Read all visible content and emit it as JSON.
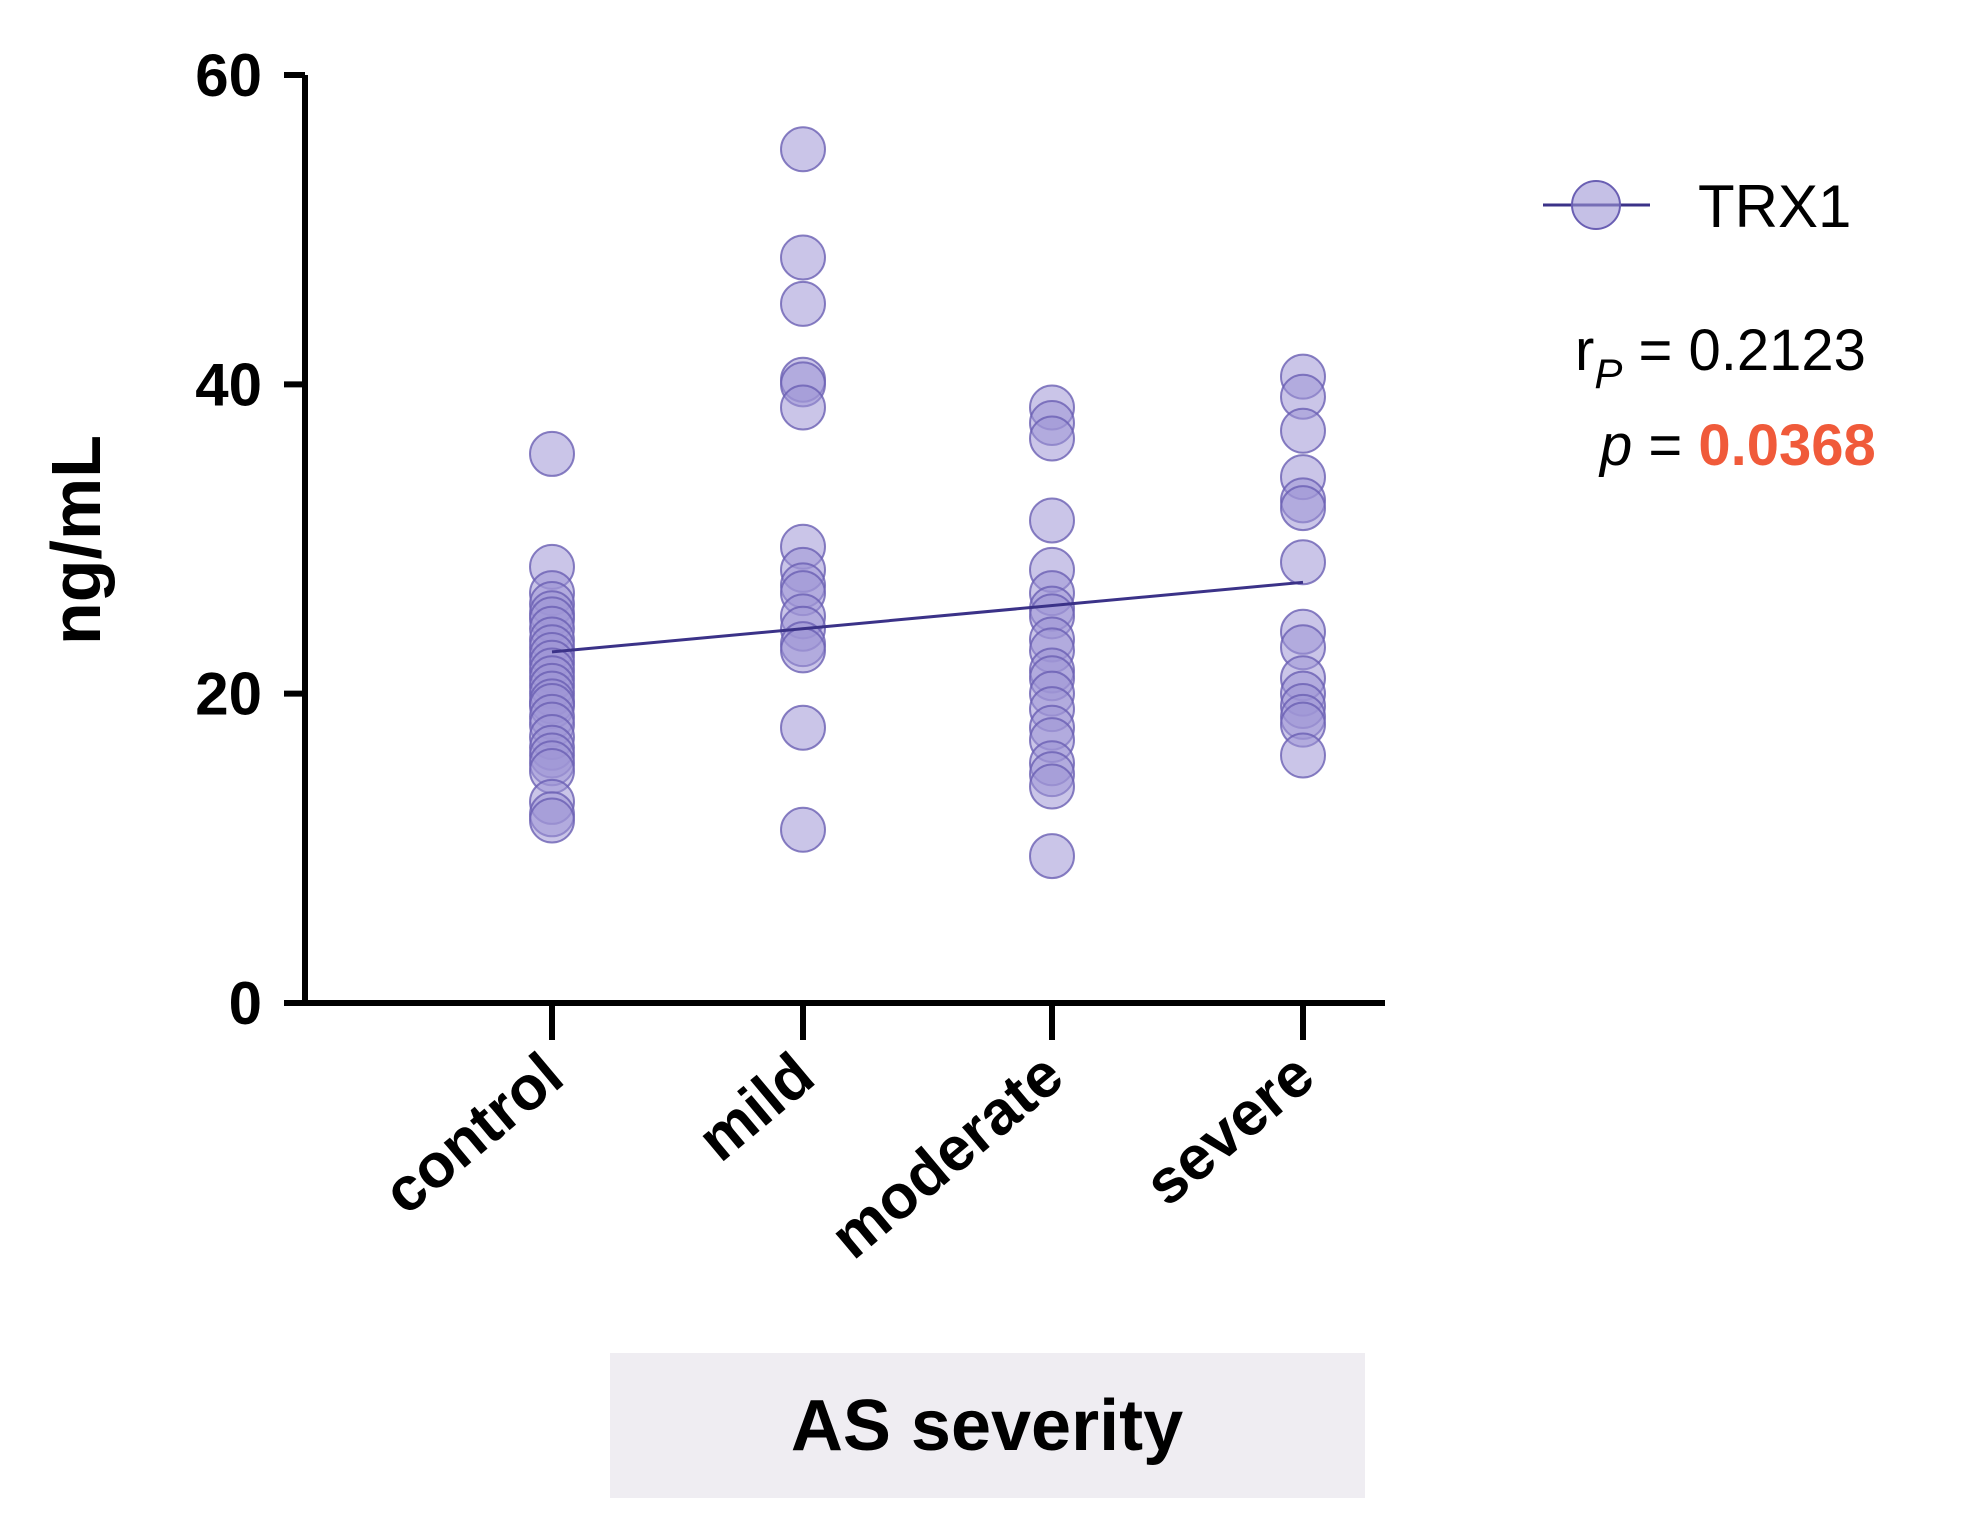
{
  "chart_data": {
    "type": "scatter",
    "title": "",
    "xlabel": "AS severity",
    "ylabel": "ng/mL",
    "ylim": [
      0,
      60
    ],
    "yticks": [
      0,
      20,
      40,
      60
    ],
    "categories": [
      "control",
      "mild",
      "moderate",
      "severe"
    ],
    "series": [
      {
        "name": "TRX1",
        "points": {
          "control": [
            35.5,
            28.2,
            26.5,
            25.8,
            25.2,
            24.8,
            24.2,
            23.5,
            23.0,
            22.5,
            22.0,
            21.5,
            21.0,
            20.5,
            20.0,
            19.5,
            19.2,
            18.5,
            18.0,
            17.2,
            16.5,
            16.0,
            15.5,
            15.0,
            13.0,
            12.2,
            11.8
          ],
          "mild": [
            55.2,
            48.2,
            45.2,
            40.3,
            40.0,
            38.5,
            29.5,
            28.0,
            27.0,
            26.5,
            25.0,
            24.2,
            23.2,
            22.8,
            17.8,
            11.2
          ],
          "moderate": [
            38.5,
            37.5,
            36.5,
            31.2,
            28.0,
            26.5,
            25.5,
            25.0,
            23.5,
            22.8,
            21.5,
            21.0,
            20.0,
            19.0,
            17.8,
            17.0,
            15.5,
            14.8,
            14.0,
            9.5
          ],
          "severe": [
            40.5,
            39.2,
            37.0,
            34.0,
            32.5,
            32.0,
            28.5,
            24.0,
            23.0,
            21.0,
            20.0,
            19.2,
            18.5,
            18.0,
            16.0
          ]
        }
      }
    ],
    "regression_line": {
      "control": 22.7,
      "severe": 27.2
    },
    "legend": {
      "position": "top-right",
      "entries": [
        "TRX1"
      ]
    },
    "annotations": {
      "r_main": "r",
      "r_sub": "P",
      "r_value": " = 0.2123",
      "p_symbol": "p",
      "p_equals": " = ",
      "p_value": "0.0368"
    },
    "colors": {
      "marker_fill": "#9e96d6",
      "marker_stroke": "#6a5fb3",
      "line": "#3b3288",
      "axis": "#000000",
      "p_value": "#f05a3a",
      "xlabel_box": "#efedf2"
    }
  }
}
